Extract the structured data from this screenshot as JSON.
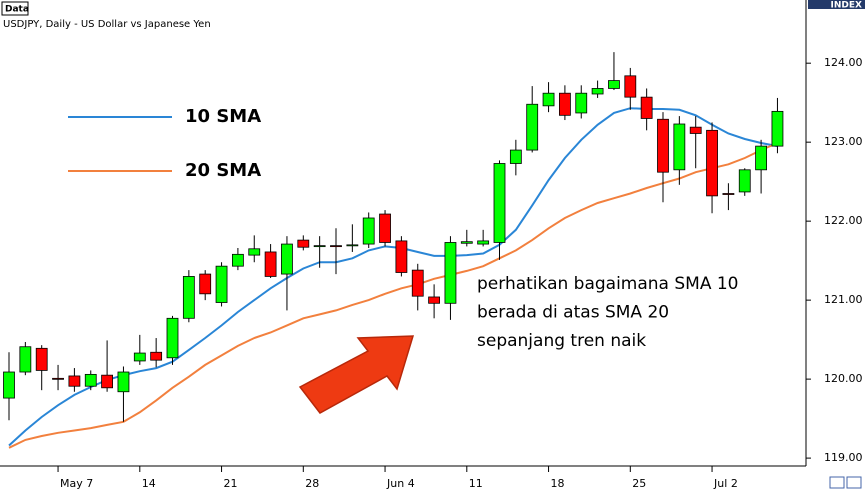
{
  "chart_data": {
    "type": "candlestick",
    "panel_label": "Data",
    "title": "USDJPY, Daily - US Dollar vs Japanese Yen",
    "index_label": "INDEX",
    "annotation": [
      "perhatikan bagaimana SMA 10",
      "berada di atas SMA 20",
      "sepanjang tren naik"
    ],
    "categories": [
      null,
      null,
      null,
      "May 7",
      null,
      null,
      null,
      null,
      "14",
      null,
      null,
      null,
      null,
      "21",
      null,
      null,
      null,
      null,
      "28",
      null,
      null,
      null,
      null,
      "Jun 4",
      null,
      null,
      null,
      null,
      "11",
      null,
      null,
      null,
      null,
      "18",
      null,
      null,
      null,
      null,
      "25",
      null,
      null,
      null,
      null,
      "Jul 2",
      null,
      null,
      null,
      null
    ],
    "open": [
      119.76,
      120.09,
      120.39,
      120.01,
      120.04,
      119.91,
      120.05,
      119.84,
      120.23,
      120.34,
      120.27,
      120.77,
      121.33,
      120.97,
      121.43,
      121.57,
      121.61,
      121.33,
      121.76,
      121.68,
      121.69,
      121.69,
      121.71,
      122.09,
      121.75,
      121.38,
      121.04,
      120.96,
      121.72,
      121.71,
      121.73,
      122.73,
      122.9,
      123.46,
      123.62,
      123.37,
      123.61,
      123.68,
      123.84,
      123.57,
      123.29,
      122.65,
      123.19,
      123.15,
      122.35,
      122.37,
      122.65,
      122.95
    ],
    "high": [
      120.34,
      120.47,
      120.43,
      120.18,
      120.14,
      120.11,
      120.49,
      120.16,
      120.56,
      120.52,
      120.8,
      121.38,
      121.38,
      121.48,
      121.66,
      121.82,
      121.71,
      121.81,
      121.82,
      121.81,
      121.91,
      121.96,
      122.11,
      122.14,
      121.81,
      121.46,
      121.2,
      121.81,
      121.89,
      121.89,
      122.77,
      123.03,
      123.71,
      123.76,
      123.72,
      123.72,
      123.78,
      124.14,
      123.94,
      123.68,
      123.38,
      123.33,
      123.33,
      123.25,
      122.48,
      122.67,
      123.03,
      123.56
    ],
    "low": [
      119.48,
      120.05,
      119.86,
      119.86,
      119.84,
      119.86,
      119.84,
      119.46,
      120.18,
      120.15,
      120.18,
      120.72,
      121.0,
      120.92,
      121.38,
      121.48,
      121.28,
      120.87,
      121.63,
      121.41,
      121.33,
      121.61,
      121.66,
      121.68,
      121.3,
      120.87,
      120.77,
      120.75,
      121.68,
      121.68,
      121.51,
      122.58,
      122.87,
      123.38,
      123.28,
      123.3,
      123.56,
      123.66,
      123.41,
      123.15,
      122.24,
      122.46,
      122.67,
      122.1,
      122.14,
      122.32,
      122.35,
      122.86
    ],
    "close": [
      120.09,
      120.41,
      120.11,
      120.0,
      119.91,
      120.06,
      119.89,
      120.09,
      120.33,
      120.24,
      120.77,
      121.3,
      121.08,
      121.43,
      121.58,
      121.65,
      121.3,
      121.71,
      121.67,
      121.69,
      121.68,
      121.7,
      122.04,
      121.73,
      121.35,
      121.05,
      120.96,
      121.73,
      121.74,
      121.75,
      122.73,
      122.9,
      123.48,
      123.62,
      123.34,
      123.62,
      123.68,
      123.78,
      123.57,
      123.3,
      122.62,
      123.23,
      123.11,
      122.32,
      122.34,
      122.65,
      122.95,
      123.39
    ],
    "up_color": "#00ff00",
    "down_color": "#ff0000",
    "series": [
      {
        "name": "10 SMA",
        "color": "#2a86d6",
        "values": [
          119.16,
          119.35,
          119.52,
          119.67,
          119.8,
          119.9,
          119.99,
          120.05,
          120.1,
          120.14,
          120.22,
          120.37,
          120.52,
          120.68,
          120.85,
          121.0,
          121.15,
          121.28,
          121.4,
          121.48,
          121.48,
          121.53,
          121.63,
          121.68,
          121.66,
          121.61,
          121.56,
          121.56,
          121.57,
          121.59,
          121.7,
          121.89,
          122.2,
          122.52,
          122.8,
          123.03,
          123.22,
          123.37,
          123.43,
          123.42,
          123.42,
          123.41,
          123.34,
          123.22,
          123.11,
          123.04,
          122.99,
          122.95
        ]
      },
      {
        "name": "20 SMA",
        "color": "#f2803e",
        "values": [
          119.13,
          119.23,
          119.28,
          119.32,
          119.35,
          119.38,
          119.42,
          119.46,
          119.58,
          119.73,
          119.89,
          120.03,
          120.18,
          120.3,
          120.42,
          120.52,
          120.59,
          120.68,
          120.77,
          120.82,
          120.87,
          120.94,
          121.0,
          121.08,
          121.15,
          121.2,
          121.27,
          121.32,
          121.37,
          121.43,
          121.53,
          121.63,
          121.76,
          121.91,
          122.04,
          122.14,
          122.23,
          122.29,
          122.35,
          122.42,
          122.48,
          122.54,
          122.62,
          122.67,
          122.72,
          122.8,
          122.9,
          122.99
        ]
      }
    ],
    "ylim": [
      118.9,
      124.8
    ],
    "yticks": [
      {
        "value": 119,
        "label": "119.00"
      },
      {
        "value": 120,
        "label": "120.00"
      },
      {
        "value": 121,
        "label": "121.00"
      },
      {
        "value": 122,
        "label": "122.00"
      },
      {
        "value": 123,
        "label": "123.00"
      },
      {
        "value": 124,
        "label": "124.00"
      }
    ],
    "legend": "top-left",
    "grid": false
  }
}
